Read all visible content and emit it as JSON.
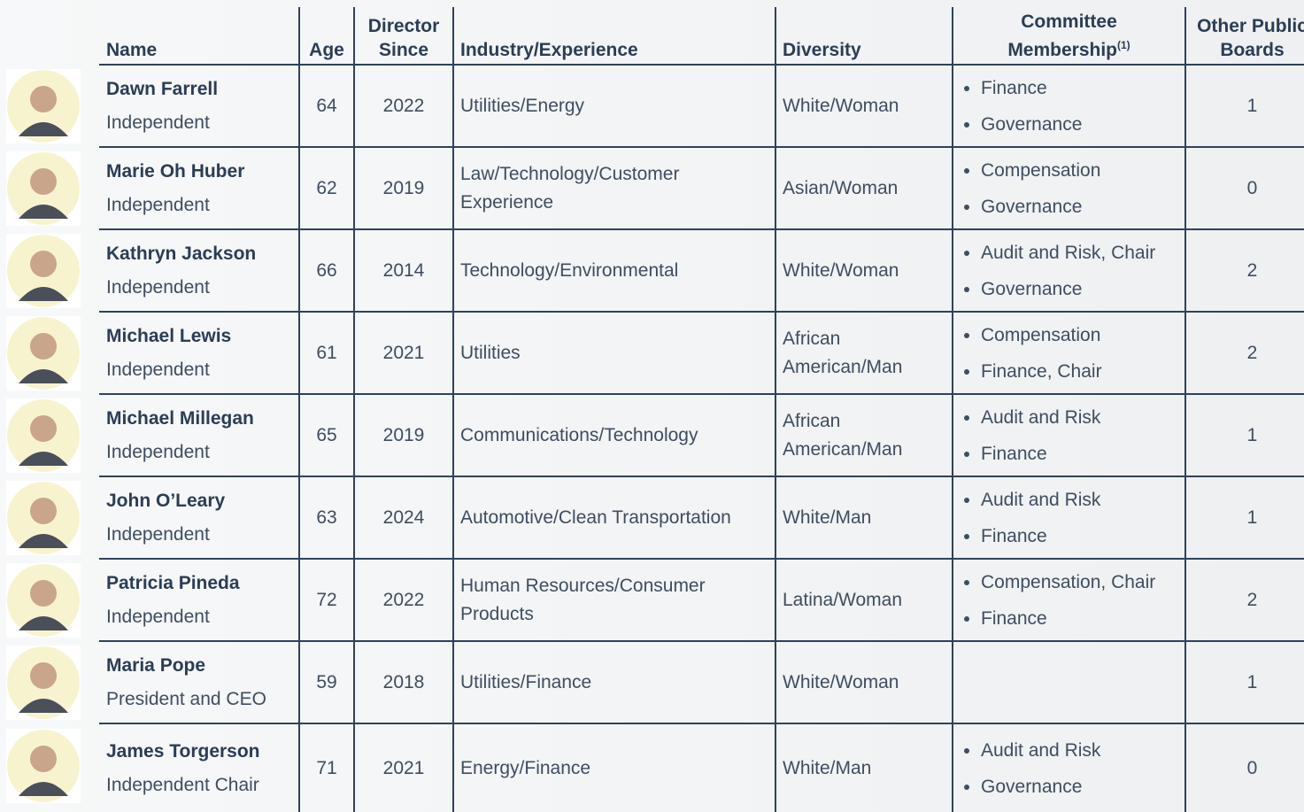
{
  "table": {
    "columns": {
      "name": "Name",
      "age": "Age",
      "director_since": "Director Since",
      "industry": "Industry/Experience",
      "diversity": "Diversity",
      "committees": "Committee Membership",
      "committees_note": "(1)",
      "other_boards": "Other Public Boards"
    },
    "rows": [
      {
        "name": "Dawn Farrell",
        "role": "Independent",
        "age": 64,
        "director_since": 2022,
        "industry": "Utilities/Energy",
        "diversity": "White/Woman",
        "committees": [
          "Finance",
          "Governance"
        ],
        "other_boards": 1
      },
      {
        "name": "Marie Oh Huber",
        "role": "Independent",
        "age": 62,
        "director_since": 2019,
        "industry": "Law/Technology/Customer Experience",
        "diversity": "Asian/Woman",
        "committees": [
          "Compensation",
          "Governance"
        ],
        "other_boards": 0
      },
      {
        "name": "Kathryn Jackson",
        "role": "Independent",
        "age": 66,
        "director_since": 2014,
        "industry": "Technology/Environmental",
        "diversity": "White/Woman",
        "committees": [
          "Audit and Risk, Chair",
          "Governance"
        ],
        "other_boards": 2
      },
      {
        "name": "Michael Lewis",
        "role": "Independent",
        "age": 61,
        "director_since": 2021,
        "industry": "Utilities",
        "diversity": "African American/Man",
        "committees": [
          "Compensation",
          "Finance, Chair"
        ],
        "other_boards": 2
      },
      {
        "name": "Michael Millegan",
        "role": "Independent",
        "age": 65,
        "director_since": 2019,
        "industry": "Communications/Technology",
        "diversity": "African American/Man",
        "committees": [
          "Audit and Risk",
          "Finance"
        ],
        "other_boards": 1
      },
      {
        "name": "John O’Leary",
        "role": "Independent",
        "age": 63,
        "director_since": 2024,
        "industry": "Automotive/Clean Transportation",
        "diversity": "White/Man",
        "committees": [
          "Audit and Risk",
          "Finance"
        ],
        "other_boards": 1
      },
      {
        "name": "Patricia Pineda",
        "role": "Independent",
        "age": 72,
        "director_since": 2022,
        "industry": "Human Resources/Consumer Products",
        "diversity": "Latina/Woman",
        "committees": [
          "Compensation, Chair",
          "Finance"
        ],
        "other_boards": 2
      },
      {
        "name": "Maria Pope",
        "role": "President and CEO",
        "age": 59,
        "director_since": 2018,
        "industry": "Utilities/Finance",
        "diversity": "White/Woman",
        "committees": [],
        "other_boards": 1
      },
      {
        "name": "James Torgerson",
        "role": "Independent Chair",
        "age": 71,
        "director_since": 2021,
        "industry": "Energy/Finance",
        "diversity": "White/Man",
        "committees": [
          "Audit and Risk",
          "Governance"
        ],
        "other_boards": 0
      }
    ]
  }
}
